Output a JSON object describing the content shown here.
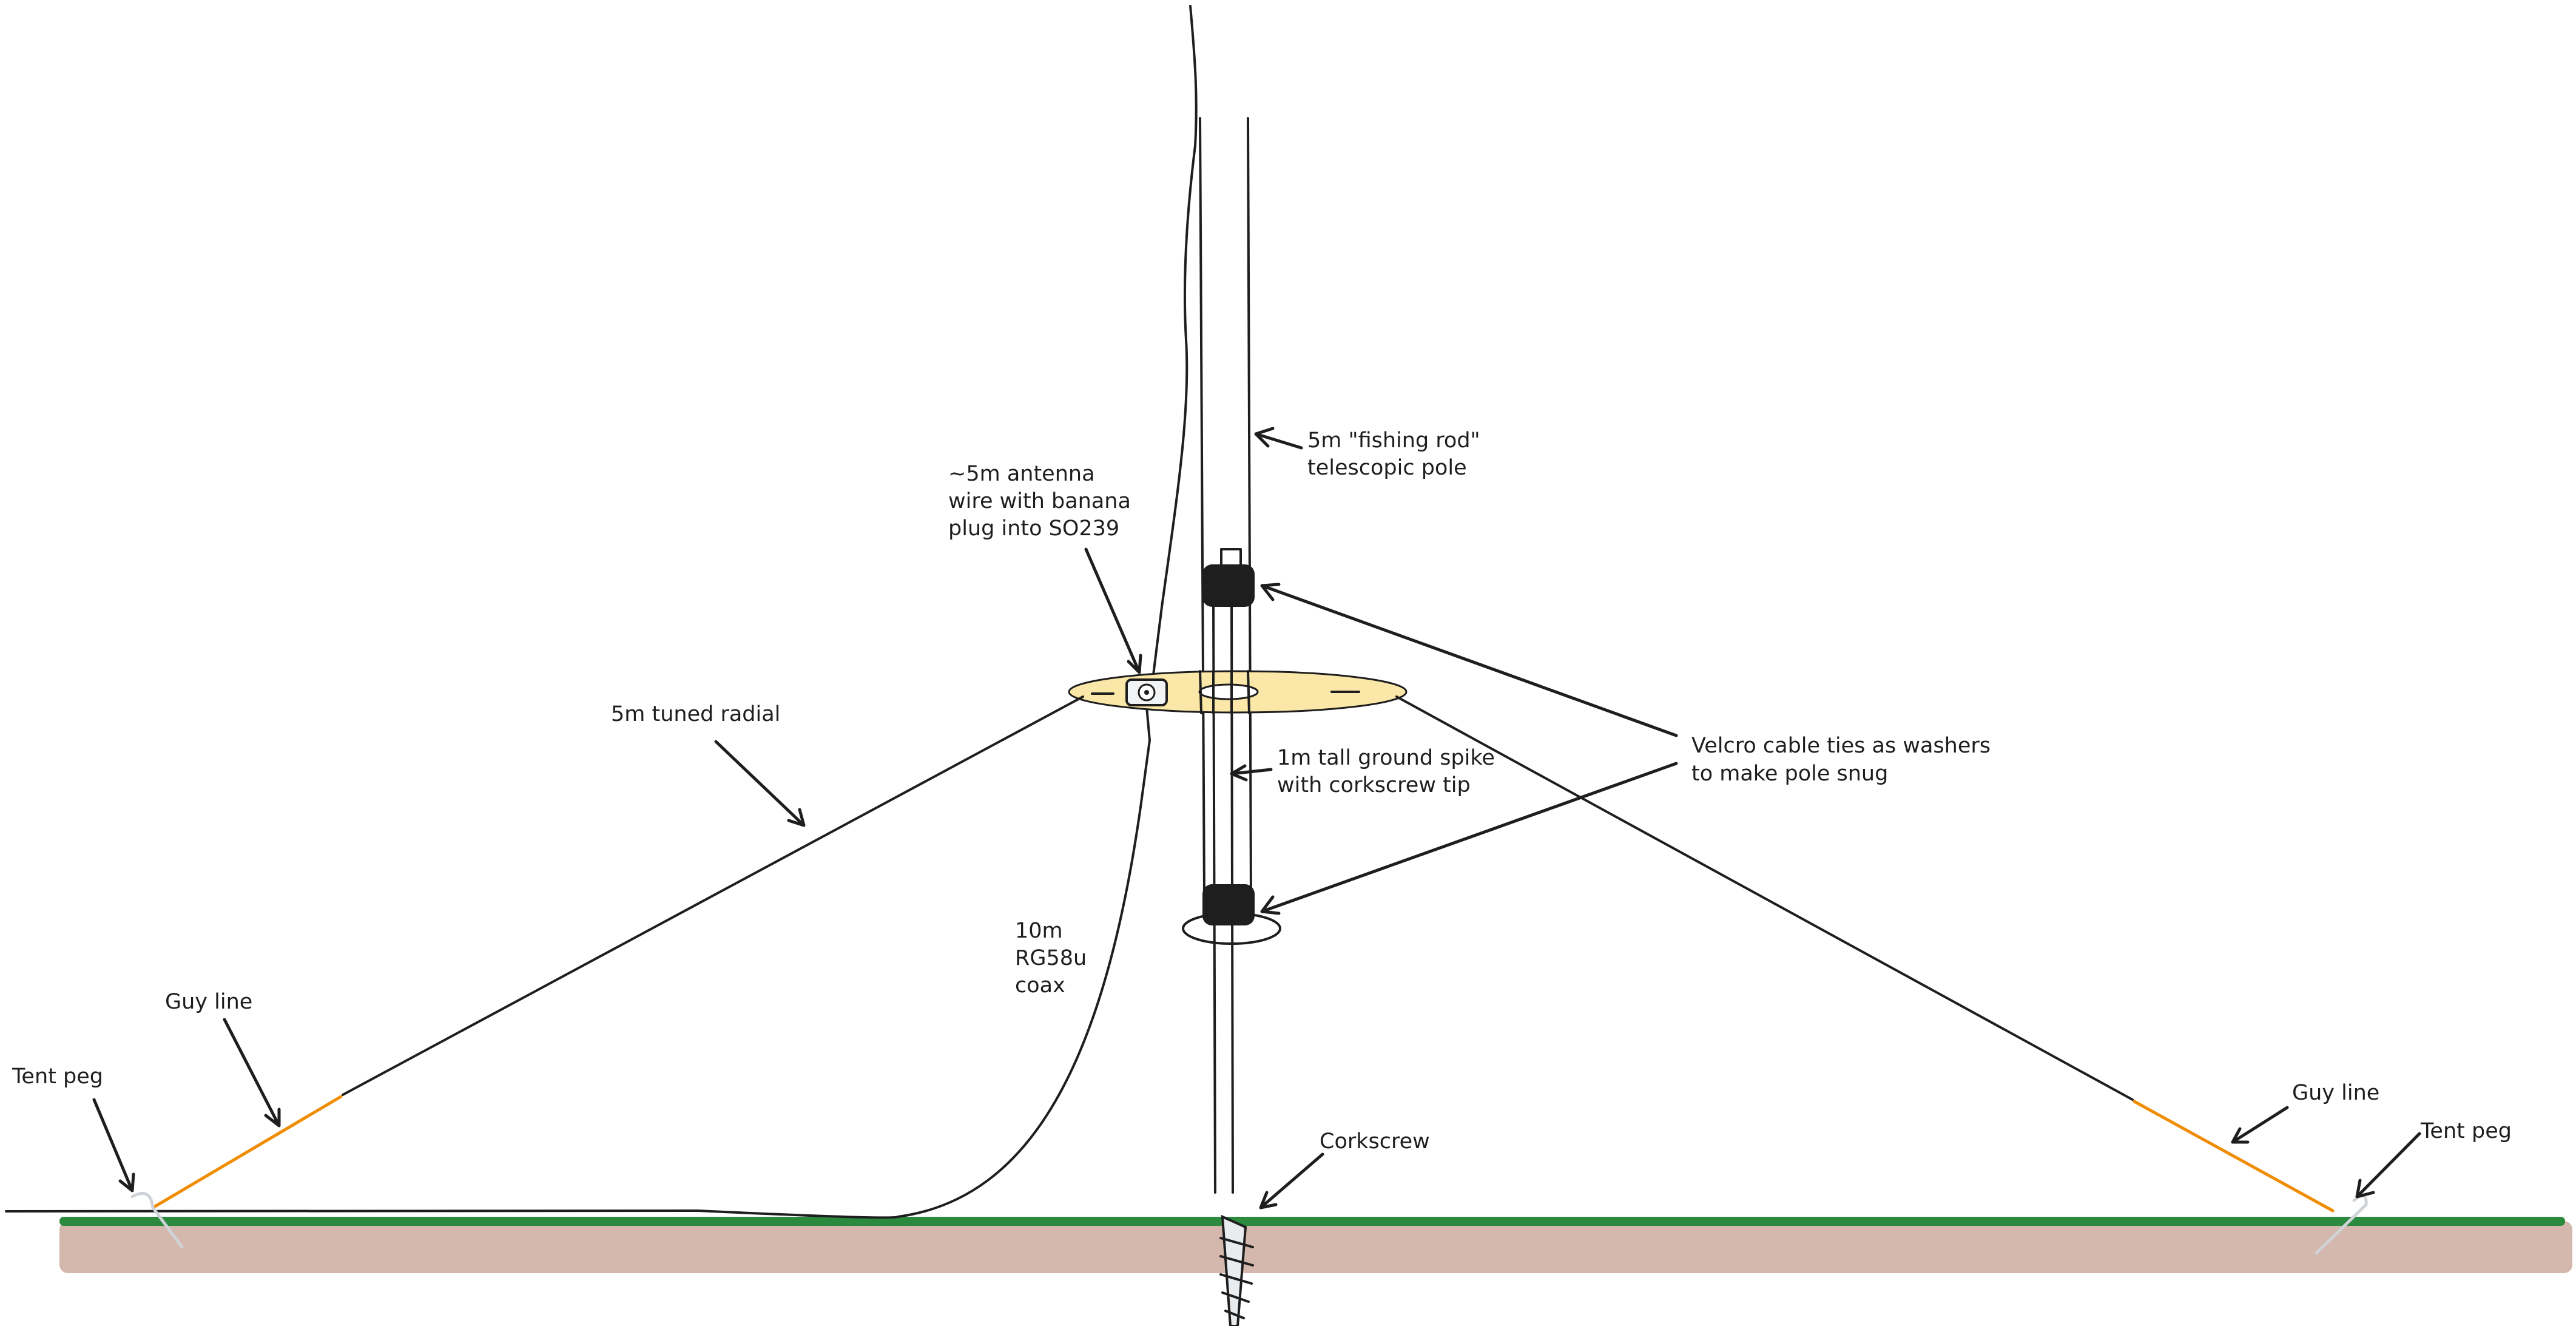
{
  "labels": {
    "antenna_wire": [
      "~5m antenna",
      "wire with banana",
      "plug into SO239"
    ],
    "fishing_pole": [
      "5m \"fishing rod\"",
      "telescopic pole"
    ],
    "tuned_radial": [
      "5m tuned radial"
    ],
    "velcro": [
      "Velcro cable ties as washers",
      "to make pole snug"
    ],
    "ground_spike": [
      "1m tall ground spike",
      "with corkscrew tip"
    ],
    "coax": [
      "10m",
      "RG58u",
      "coax"
    ],
    "guy_line_left": [
      "Guy line"
    ],
    "tent_peg_left": [
      "Tent peg"
    ],
    "corkscrew": [
      "Corkscrew"
    ],
    "guy_line_right": [
      "Guy line"
    ],
    "tent_peg_right": [
      "Tent peg"
    ]
  },
  "colors": {
    "ink": "#1e1e1e",
    "radial_plate": "#fbe7a7",
    "velcro_tie": "#1e1e1e",
    "guy_line": "#f08c00",
    "grass": "#2b8a3e",
    "soil": "#d4b8ad",
    "tent_peg": "#cfd3d8"
  }
}
